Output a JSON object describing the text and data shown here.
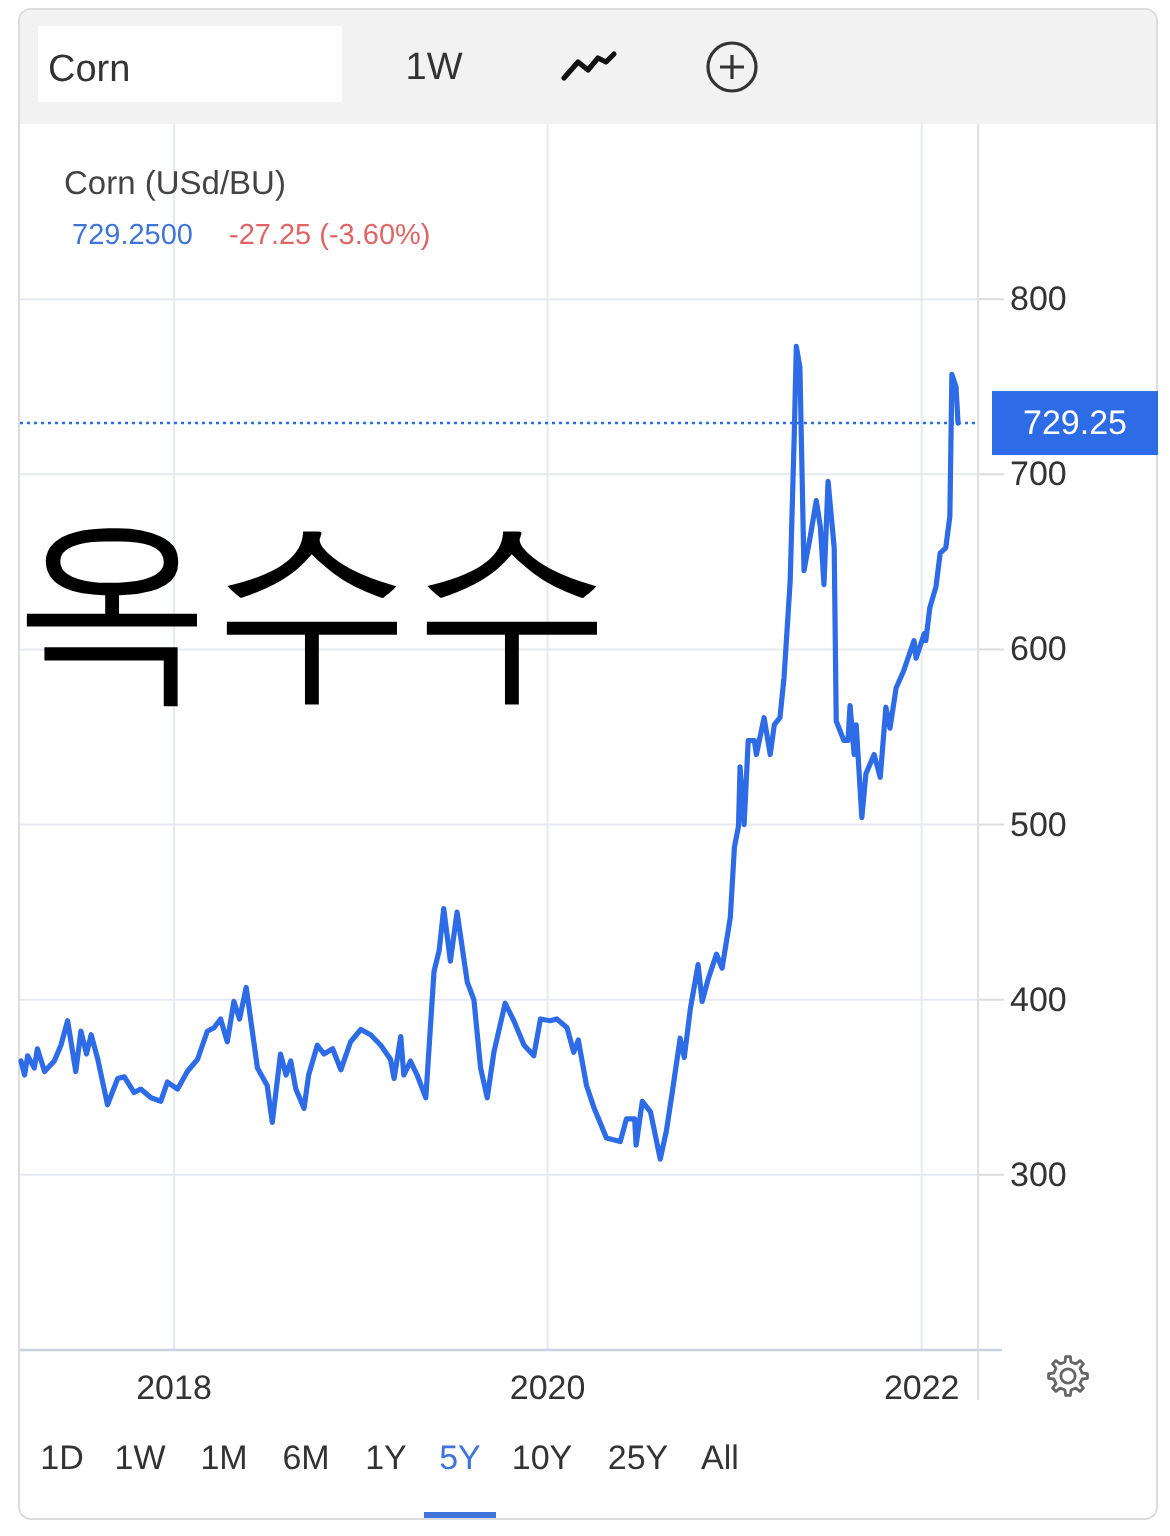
{
  "chart_data": {
    "type": "line",
    "title": "Corn (USd/BU)",
    "annotations": [
      "옥수수",
      "729.2500",
      "-27.25 (-3.60%)",
      "Corn",
      "1W",
      "1D",
      "1W",
      "1M",
      "6M",
      "1Y",
      "5Y",
      "10Y",
      "25Y",
      "All"
    ],
    "x": [
      "2017-03-08",
      "2017-03-15",
      "2017-03-21",
      "2017-04-03",
      "2017-04-09",
      "2017-04-23",
      "2017-05-12",
      "2017-05-25",
      "2017-06-07",
      "2017-06-23",
      "2017-07-03",
      "2017-07-14",
      "2017-07-23",
      "2017-08-05",
      "2017-08-24",
      "2017-09-13",
      "2017-09-26",
      "2017-10-15",
      "2017-10-28",
      "2017-11-17",
      "2017-12-06",
      "2017-12-19",
      "2018-01-08",
      "2018-01-27",
      "2018-02-16",
      "2018-03-07",
      "2018-03-20",
      "2018-04-02",
      "2018-04-15",
      "2018-04-28",
      "2018-05-09",
      "2018-05-22",
      "2018-06-13",
      "2018-07-02",
      "2018-07-12",
      "2018-07-28",
      "2018-08-08",
      "2018-08-17",
      "2018-08-27",
      "2018-09-12",
      "2018-09-21",
      "2018-10-08",
      "2018-10-21",
      "2018-11-07",
      "2018-11-23",
      "2018-12-12",
      "2019-01-01",
      "2019-01-20",
      "2019-02-09",
      "2019-02-28",
      "2019-03-07",
      "2019-03-20",
      "2019-03-26",
      "2019-04-08",
      "2019-04-21",
      "2019-05-08",
      "2019-05-24",
      "2019-06-03",
      "2019-06-12",
      "2019-06-25",
      "2019-07-08",
      "2019-07-28",
      "2019-08-10",
      "2019-08-23",
      "2019-09-05",
      "2019-09-18",
      "2019-10-10",
      "2019-10-27",
      "2019-11-16",
      "2019-12-05",
      "2019-12-18",
      "2020-01-06",
      "2020-01-19",
      "2020-02-08",
      "2020-02-21",
      "2020-03-01",
      "2020-03-17",
      "2020-04-01",
      "2020-04-25",
      "2020-05-22",
      "2020-06-03",
      "2020-06-19",
      "2020-06-22",
      "2020-07-04",
      "2020-07-20",
      "2020-08-08",
      "2020-08-20",
      "2020-09-01",
      "2020-09-16",
      "2020-09-24",
      "2020-10-06",
      "2020-10-21",
      "2020-10-29",
      "2020-11-10",
      "2020-11-26",
      "2020-12-07",
      "2020-12-23",
      "2020-12-31",
      "2021-01-08",
      "2021-01-11",
      "2021-01-19",
      "2021-01-27",
      "2021-02-08",
      "2021-02-12",
      "2021-02-27",
      "2021-03-11",
      "2021-03-19",
      "2021-03-30",
      "2021-04-07",
      "2021-04-19",
      "2021-04-27",
      "2021-05-01",
      "2021-05-08",
      "2021-05-16",
      "2021-05-28",
      "2021-06-09",
      "2021-06-17",
      "2021-06-24",
      "2021-07-02",
      "2021-07-14",
      "2021-07-18",
      "2021-08-02",
      "2021-08-10",
      "2021-08-14",
      "2021-08-22",
      "2021-08-26",
      "2021-09-06",
      "2021-09-14",
      "2021-09-30",
      "2021-10-12",
      "2021-10-23",
      "2021-10-31",
      "2021-11-12",
      "2021-11-27",
      "2021-12-17",
      "2021-12-21",
      "2022-01-06",
      "2022-01-09",
      "2022-01-17",
      "2022-01-29",
      "2022-02-06",
      "2022-02-17",
      "2022-02-25",
      "2022-03-01",
      "2022-03-09",
      "2022-03-13"
    ],
    "values": [
      365,
      357,
      368,
      361,
      372,
      359,
      365,
      374,
      388,
      359,
      382,
      369,
      380,
      366,
      340,
      355,
      356,
      347,
      349,
      344,
      342,
      353,
      349,
      359,
      366,
      382,
      384,
      389,
      376,
      399,
      389,
      407,
      361,
      351,
      330,
      369,
      357,
      365,
      349,
      338,
      357,
      374,
      369,
      372,
      360,
      376,
      383,
      380,
      374,
      366,
      355,
      379,
      357,
      365,
      357,
      344,
      416,
      428,
      452,
      422,
      450,
      410,
      400,
      361,
      344,
      370,
      398,
      388,
      374,
      368,
      389,
      388,
      389,
      384,
      370,
      377,
      351,
      338,
      321,
      319,
      332,
      332,
      317,
      342,
      336,
      309,
      325,
      348,
      378,
      367,
      395,
      420,
      399,
      412,
      426,
      418,
      447,
      487,
      499,
      533,
      500,
      548,
      548,
      540,
      561,
      540,
      557,
      561,
      584,
      639,
      723,
      773,
      761,
      645,
      664,
      685,
      670,
      637,
      696,
      658,
      559,
      548,
      548,
      568,
      540,
      557,
      504,
      529,
      540,
      527,
      567,
      555,
      578,
      588,
      605,
      595,
      609,
      605,
      624,
      636,
      655,
      658,
      676,
      757,
      750,
      729.25
    ],
    "color": "#2e6be6",
    "xlim": [
      "2017-03-06",
      "2022-04-21"
    ],
    "ylim": [
      200,
      900
    ],
    "xticks": [
      {
        "value": "2018-01-01",
        "label": "2018"
      },
      {
        "value": "2020-01-01",
        "label": "2020"
      },
      {
        "value": "2022-01-01",
        "label": "2022"
      }
    ],
    "yticks": [
      300,
      400,
      500,
      600,
      700,
      800
    ],
    "grid": true,
    "ref_lines": [
      {
        "axis": "y",
        "value": 729.25,
        "label": "729.25",
        "color": "#2e6be6",
        "line_style": "dotted"
      }
    ]
  }
}
